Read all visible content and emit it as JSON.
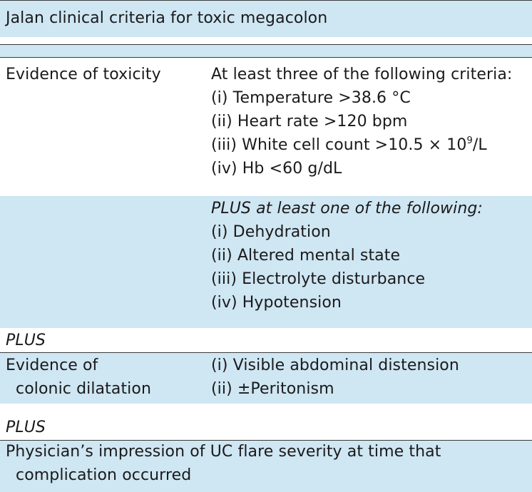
{
  "table": {
    "title": "Jalan clinical criteria for toxic megacolon",
    "toxicity": {
      "label": "Evidence of toxicity",
      "intro": "At least three of the following criteria:",
      "criteria": [
        "(i) Temperature >38.6 °C",
        "(ii) Heart rate >120 bpm",
        "(iii) White cell count >10.5 × 10",
        "(iv) Hb <60 g/dL"
      ],
      "wcc_exponent": "9",
      "wcc_unit": "/L"
    },
    "plus_one": {
      "intro": "PLUS at least one of the following:",
      "criteria": [
        "(i)  Dehydration",
        "(ii)  Altered mental state",
        "(iii)  Electrolyte disturbance",
        "(iv)  Hypotension"
      ]
    },
    "plus_label_1": "PLUS",
    "dilatation": {
      "label_line1": "Evidence of",
      "label_line2": "colonic dilatation",
      "criteria": [
        "(i)  Visible abdominal distension",
        "(ii)  ±Peritonism"
      ]
    },
    "plus_label_2": "PLUS",
    "impression": {
      "line1": "Physician’s impression of UC flare severity at time that",
      "line2": "complication occurred"
    }
  },
  "colors": {
    "band": "#cfe6f3",
    "rule": "#3a3a3a",
    "text": "#1a1a1a"
  }
}
